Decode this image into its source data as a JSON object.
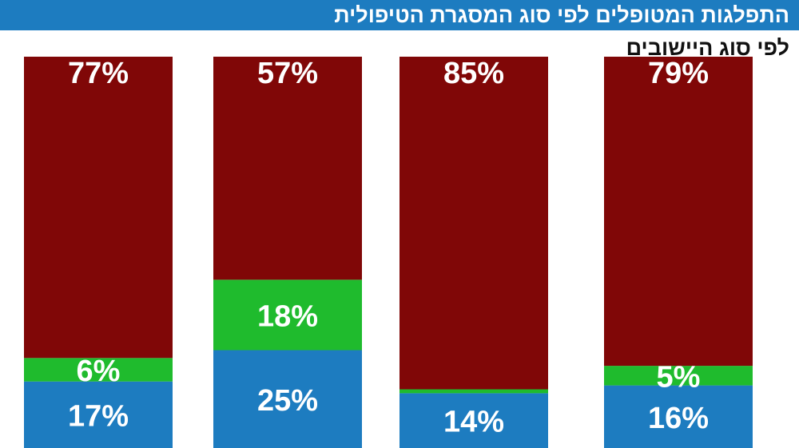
{
  "header": {
    "title": "התפלגות המטופלים לפי סוג המסגרת הטיפולית",
    "subtitle": "לפי סוג היישובים"
  },
  "colors": {
    "title_bar": "#1d7cc0",
    "blue": "#1d7cc0",
    "green": "#1fbb2d",
    "red": "#800707"
  },
  "chart_data": {
    "type": "bar",
    "stacked": true,
    "title": "התפלגות המטופלים לפי סוג המסגרת הטיפולית",
    "subtitle": "לפי סוג היישובים",
    "categories": [
      "",
      "",
      "",
      ""
    ],
    "series": [
      {
        "color": "#1d7cc0",
        "values": [
          17,
          25,
          14,
          16
        ],
        "labels": [
          "17%",
          "25%",
          "14%",
          "16%"
        ]
      },
      {
        "color": "#1fbb2d",
        "values": [
          6,
          18,
          1,
          5
        ],
        "labels": [
          "6%",
          "18%",
          "",
          "5%"
        ]
      },
      {
        "color": "#800707",
        "values": [
          77,
          57,
          85,
          79
        ],
        "labels": [
          "77%",
          "57%",
          "85%",
          "79%"
        ]
      }
    ],
    "grid": false,
    "legend": "none"
  }
}
